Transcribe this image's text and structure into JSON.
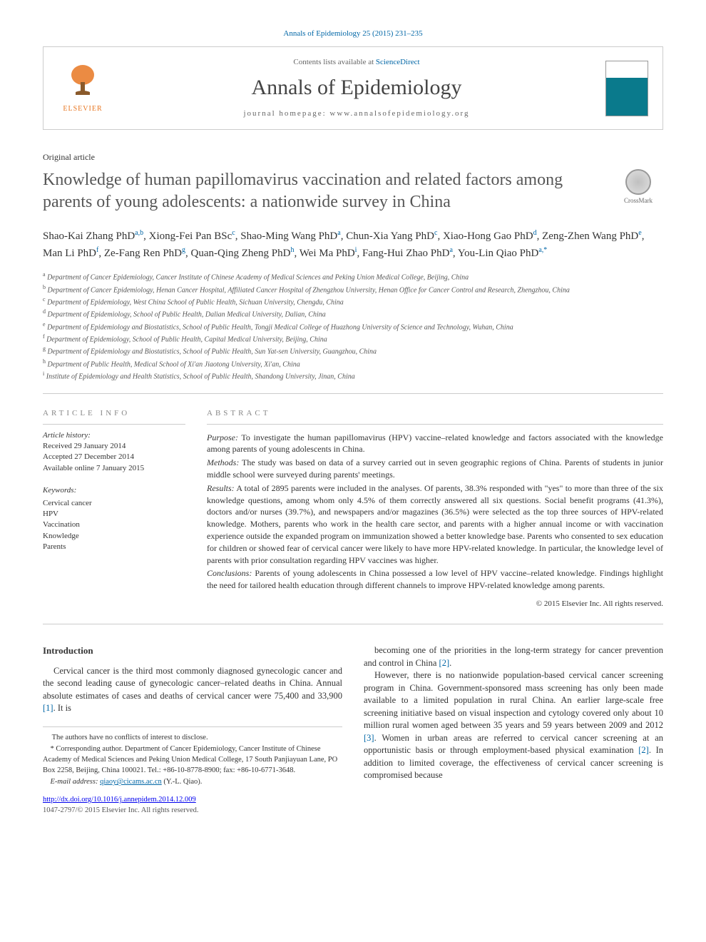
{
  "citation": "Annals of Epidemiology 25 (2015) 231–235",
  "header": {
    "contents_prefix": "Contents lists available at ",
    "contents_link": "ScienceDirect",
    "journal": "Annals of Epidemiology",
    "homepage_prefix": "journal homepage: ",
    "homepage_url": "www.annalsofepidemiology.org",
    "publisher": "ELSEVIER"
  },
  "article_type": "Original article",
  "title": "Knowledge of human papillomavirus vaccination and related factors among parents of young adolescents: a nationwide survey in China",
  "crossmark_label": "CrossMark",
  "authors_html": "Shao-Kai Zhang PhD<sup>a,b</sup>, Xiong-Fei Pan BSc<sup>c</sup>, Shao-Ming Wang PhD<sup>a</sup>, Chun-Xia Yang PhD<sup>c</sup>, Xiao-Hong Gao PhD<sup>d</sup>, Zeng-Zhen Wang PhD<sup>e</sup>, Man Li PhD<sup>f</sup>, Ze-Fang Ren PhD<sup>g</sup>, Quan-Qing Zheng PhD<sup>h</sup>, Wei Ma PhD<sup>i</sup>, Fang-Hui Zhao PhD<sup>a</sup>, You-Lin Qiao PhD<sup>a,*</sup>",
  "affiliations": [
    "a Department of Cancer Epidemiology, Cancer Institute of Chinese Academy of Medical Sciences and Peking Union Medical College, Beijing, China",
    "b Department of Cancer Epidemiology, Henan Cancer Hospital, Affiliated Cancer Hospital of Zhengzhou University, Henan Office for Cancer Control and Research, Zhengzhou, China",
    "c Department of Epidemiology, West China School of Public Health, Sichuan University, Chengdu, China",
    "d Department of Epidemiology, School of Public Health, Dalian Medical University, Dalian, China",
    "e Department of Epidemiology and Biostatistics, School of Public Health, Tongji Medical College of Huazhong University of Science and Technology, Wuhan, China",
    "f Department of Epidemiology, School of Public Health, Capital Medical University, Beijing, China",
    "g Department of Epidemiology and Biostatistics, School of Public Health, Sun Yat-sen University, Guangzhou, China",
    "h Department of Public Health, Medical School of Xi'an Jiaotong University, Xi'an, China",
    "i Institute of Epidemiology and Health Statistics, School of Public Health, Shandong University, Jinan, China"
  ],
  "info": {
    "heading": "ARTICLE INFO",
    "history_label": "Article history:",
    "received": "Received 29 January 2014",
    "accepted": "Accepted 27 December 2014",
    "online": "Available online 7 January 2015",
    "keywords_label": "Keywords:",
    "keywords": [
      "Cervical cancer",
      "HPV",
      "Vaccination",
      "Knowledge",
      "Parents"
    ]
  },
  "abstract": {
    "heading": "ABSTRACT",
    "purpose_label": "Purpose:",
    "purpose": " To investigate the human papillomavirus (HPV) vaccine–related knowledge and factors associated with the knowledge among parents of young adolescents in China.",
    "methods_label": "Methods:",
    "methods": " The study was based on data of a survey carried out in seven geographic regions of China. Parents of students in junior middle school were surveyed during parents' meetings.",
    "results_label": "Results:",
    "results": " A total of 2895 parents were included in the analyses. Of parents, 38.3% responded with \"yes\" to more than three of the six knowledge questions, among whom only 4.5% of them correctly answered all six questions. Social benefit programs (41.3%), doctors and/or nurses (39.7%), and newspapers and/or magazines (36.5%) were selected as the top three sources of HPV-related knowledge. Mothers, parents who work in the health care sector, and parents with a higher annual income or with vaccination experience outside the expanded program on immunization showed a better knowledge base. Parents who consented to sex education for children or showed fear of cervical cancer were likely to have more HPV-related knowledge. In particular, the knowledge level of parents with prior consultation regarding HPV vaccines was higher.",
    "conclusions_label": "Conclusions:",
    "conclusions": " Parents of young adolescents in China possessed a low level of HPV vaccine–related knowledge. Findings highlight the need for tailored health education through different channels to improve HPV-related knowledge among parents.",
    "copyright": "© 2015 Elsevier Inc. All rights reserved."
  },
  "intro": {
    "heading": "Introduction",
    "p1_a": "Cervical cancer is the third most commonly diagnosed gynecologic cancer and the second leading cause of gynecologic cancer–related deaths in China. Annual absolute estimates of cases and deaths of cervical cancer were 75,400 and 33,900 ",
    "ref1": "[1]",
    "p1_b": ". It is",
    "p2_a": "becoming one of the priorities in the long-term strategy for cancer prevention and control in China ",
    "ref2": "[2]",
    "p2_b": ".",
    "p3_a": "However, there is no nationwide population-based cervical cancer screening program in China. Government-sponsored mass screening has only been made available to a limited population in rural China. An earlier large-scale free screening initiative based on visual inspection and cytology covered only about 10 million rural women aged between 35 years and 59 years between 2009 and 2012 ",
    "ref3": "[3]",
    "p3_b": ". Women in urban areas are referred to cervical cancer screening at an opportunistic basis or through employment-based physical examination ",
    "ref2b": "[2]",
    "p3_c": ". In addition to limited coverage, the effectiveness of cervical cancer screening is compromised because"
  },
  "footnotes": {
    "conflict": "The authors have no conflicts of interest to disclose.",
    "corresponding": "* Corresponding author. Department of Cancer Epidemiology, Cancer Institute of Chinese Academy of Medical Sciences and Peking Union Medical College, 17 South Panjiayuan Lane, PO Box 2258, Beijing, China 100021. Tel.: +86-10-8778-8900; fax: +86-10-6771-3648.",
    "email_label": "E-mail address: ",
    "email": "qiaoy@cicams.ac.cn",
    "email_suffix": " (Y.-L. Qiao)."
  },
  "doi": "http://dx.doi.org/10.1016/j.annepidem.2014.12.009",
  "issn": "1047-2797/© 2015 Elsevier Inc. All rights reserved."
}
